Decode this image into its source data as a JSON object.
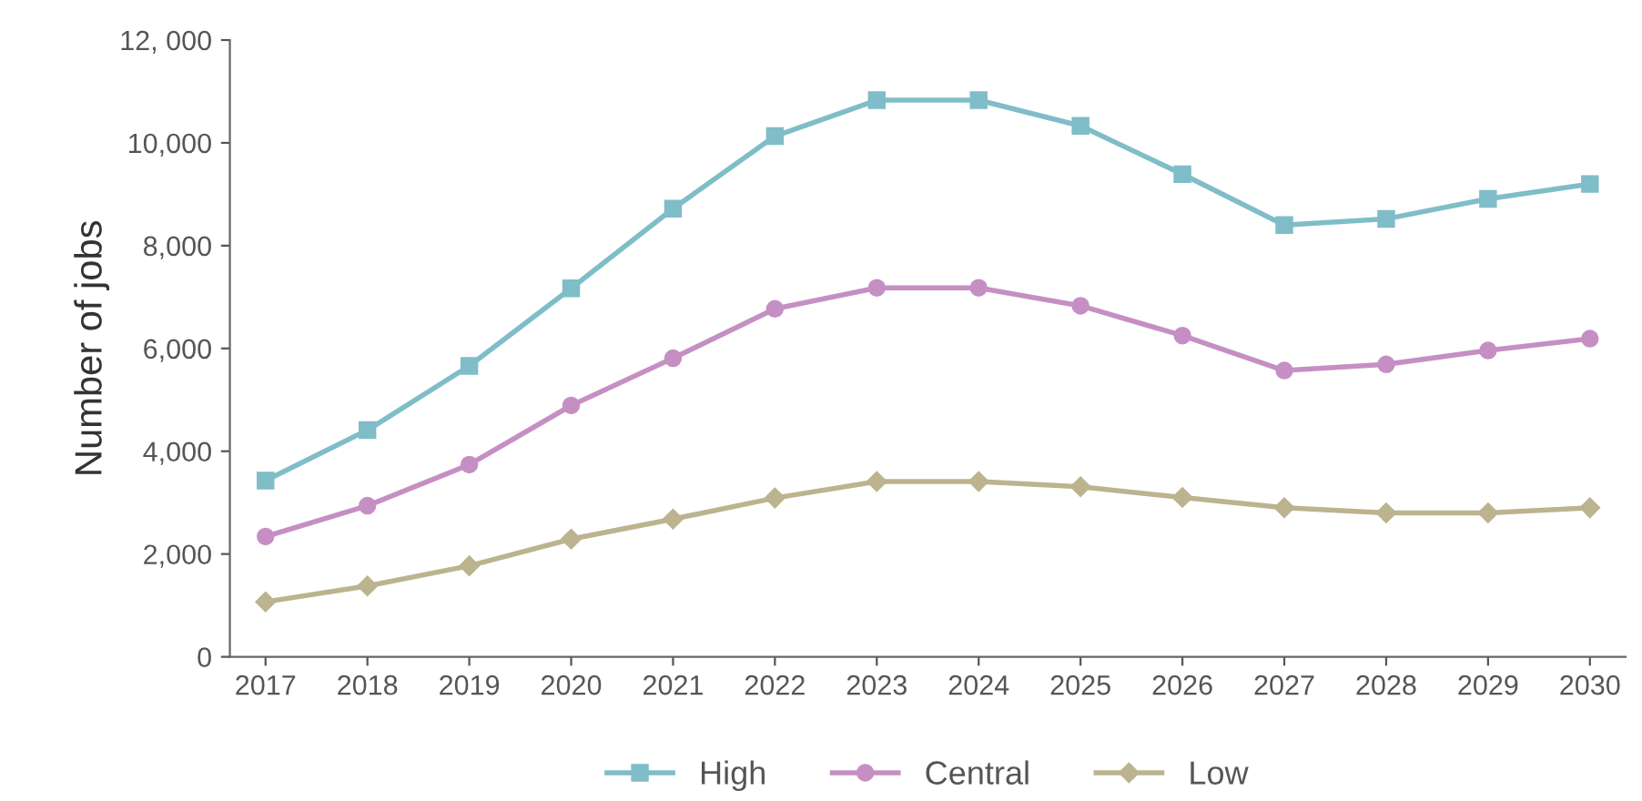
{
  "chart_data": {
    "type": "line",
    "ylabel": "Number of jobs",
    "categories": [
      "2017",
      "2018",
      "2019",
      "2020",
      "2021",
      "2022",
      "2023",
      "2024",
      "2025",
      "2026",
      "2027",
      "2028",
      "2029",
      "2030"
    ],
    "series": [
      {
        "name": "High",
        "color": "#7fbdc8",
        "marker": "square",
        "values": [
          3430,
          4410,
          5660,
          7170,
          8720,
          10130,
          10830,
          10830,
          10330,
          9390,
          8400,
          8520,
          8910,
          9200
        ]
      },
      {
        "name": "Central",
        "color": "#c58fc4",
        "marker": "circle",
        "values": [
          2340,
          2940,
          3740,
          4890,
          5810,
          6770,
          7180,
          7180,
          6830,
          6250,
          5570,
          5690,
          5960,
          6190
        ]
      },
      {
        "name": "Low",
        "color": "#bcb38f",
        "marker": "diamond",
        "values": [
          1070,
          1380,
          1770,
          2290,
          2680,
          3090,
          3410,
          3410,
          3310,
          3100,
          2900,
          2800,
          2800,
          2900
        ]
      }
    ],
    "ylim": [
      0,
      12000
    ],
    "yticks": [
      0,
      {
        "value": 2000,
        "label": "2,000"
      },
      {
        "value": 4000,
        "label": "4,000"
      },
      {
        "value": 6000,
        "label": "6,000"
      },
      {
        "value": 8000,
        "label": "8,000"
      },
      {
        "value": 10000,
        "label": "10,000"
      },
      {
        "value": 12000,
        "label": "12, 000"
      }
    ],
    "grid": false,
    "legend": "bottom",
    "line_style": "solid"
  }
}
